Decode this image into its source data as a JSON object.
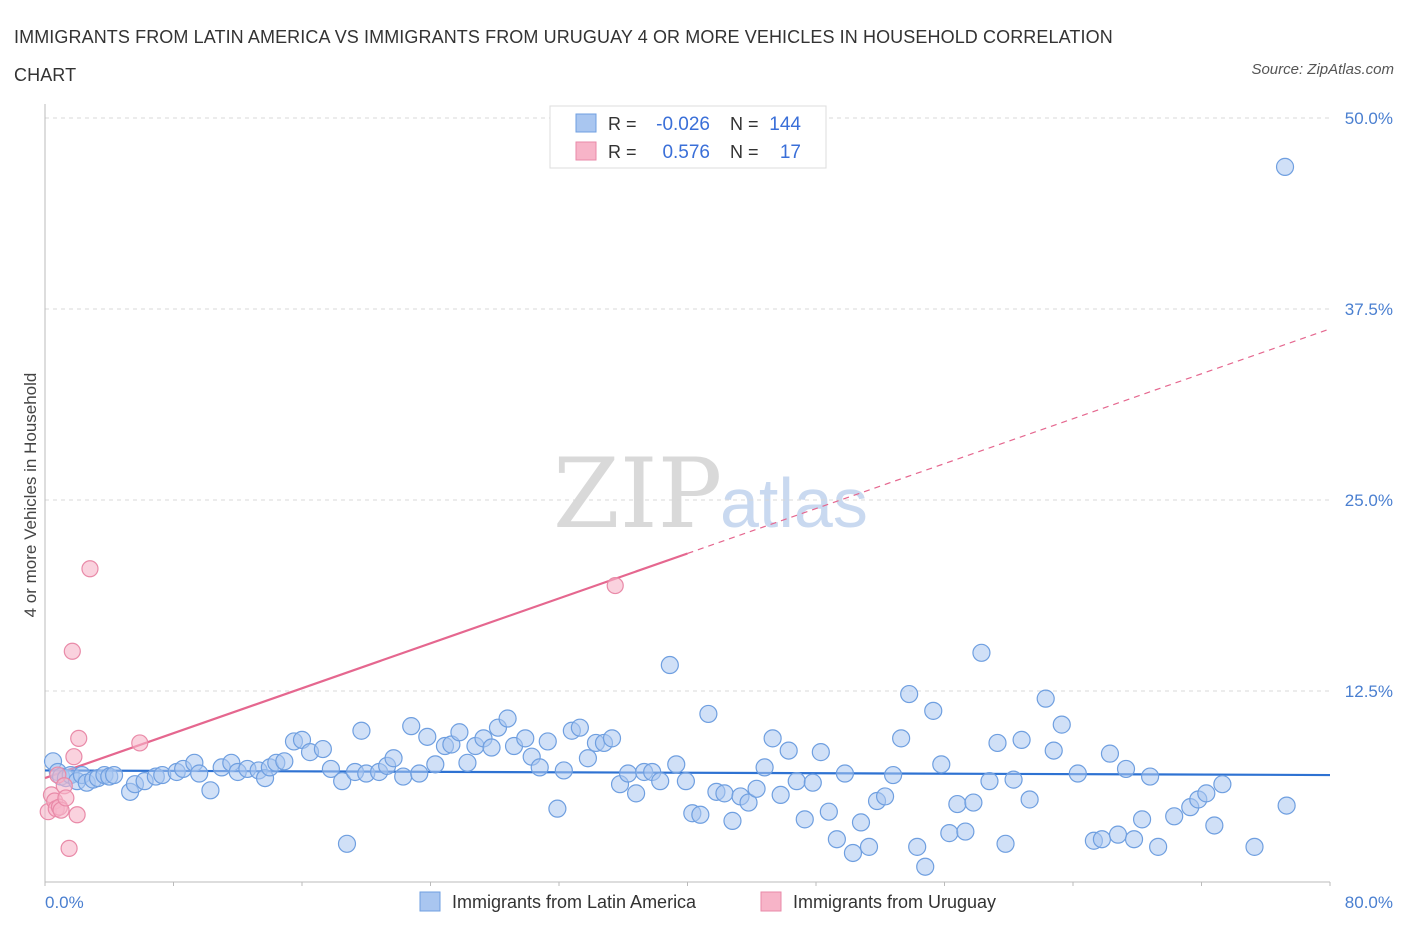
{
  "title": "IMMIGRANTS FROM LATIN AMERICA VS IMMIGRANTS FROM URUGUAY 4 OR MORE VEHICLES IN HOUSEHOLD CORRELATION CHART",
  "source": "Source: ZipAtlas.com",
  "watermark": {
    "zip": "ZIP",
    "atlas": "atlas"
  },
  "colors": {
    "blue_fill": "#a9c6f0",
    "blue_stroke": "#6f9fe0",
    "blue_line": "#2e72d2",
    "pink_fill": "#f7b4c8",
    "pink_stroke": "#e98aa8",
    "pink_line": "#e5678f",
    "grid": "#d8d8d8",
    "axis_label": "#4a7fd0"
  },
  "legend": {
    "rows": [
      {
        "r_label": "R =",
        "r_value": "-0.026",
        "n_label": "N =",
        "n_value": "144"
      },
      {
        "r_label": "R =",
        "r_value": "0.576",
        "n_label": "N =",
        "n_value": "17"
      }
    ]
  },
  "chart_data": {
    "type": "scatter",
    "title": "IMMIGRANTS FROM LATIN AMERICA VS IMMIGRANTS FROM URUGUAY 4 OR MORE VEHICLES IN HOUSEHOLD CORRELATION CHART",
    "xlabel": "",
    "ylabel": "4 or more Vehicles in Household",
    "xlim": [
      0,
      80
    ],
    "ylim": [
      0,
      50
    ],
    "x_tick_labels": [
      "0.0%",
      "80.0%"
    ],
    "y_ticks": [
      12.5,
      25.0,
      37.5,
      50.0
    ],
    "y_tick_labels": [
      "12.5%",
      "25.0%",
      "37.5%",
      "50.0%"
    ],
    "grid": true,
    "legend_placement": "top-center",
    "series": [
      {
        "name": "Immigrants from Latin America",
        "R": -0.026,
        "N": 144,
        "trend": {
          "x": [
            0,
            80
          ],
          "y": [
            7.3,
            7.0
          ],
          "dashed_from": null
        },
        "points": [
          [
            0.5,
            7.9
          ],
          [
            0.8,
            7.2
          ],
          [
            1.0,
            6.9
          ],
          [
            1.3,
            6.8
          ],
          [
            1.6,
            7.0
          ],
          [
            2.0,
            6.6
          ],
          [
            2.3,
            7.0
          ],
          [
            2.6,
            6.5
          ],
          [
            3.0,
            6.7
          ],
          [
            3.3,
            6.8
          ],
          [
            3.7,
            7.0
          ],
          [
            4.0,
            6.9
          ],
          [
            4.3,
            7.0
          ],
          [
            5.3,
            5.9
          ],
          [
            5.6,
            6.4
          ],
          [
            6.2,
            6.6
          ],
          [
            6.9,
            6.9
          ],
          [
            7.3,
            7.0
          ],
          [
            8.2,
            7.2
          ],
          [
            8.6,
            7.4
          ],
          [
            9.3,
            7.8
          ],
          [
            9.6,
            7.1
          ],
          [
            10.3,
            6.0
          ],
          [
            11.0,
            7.5
          ],
          [
            11.6,
            7.8
          ],
          [
            12.0,
            7.2
          ],
          [
            12.6,
            7.4
          ],
          [
            13.3,
            7.3
          ],
          [
            13.7,
            6.8
          ],
          [
            14.0,
            7.5
          ],
          [
            14.4,
            7.8
          ],
          [
            14.9,
            7.9
          ],
          [
            15.5,
            9.2
          ],
          [
            16.0,
            9.3
          ],
          [
            16.5,
            8.5
          ],
          [
            17.3,
            8.7
          ],
          [
            17.8,
            7.4
          ],
          [
            18.5,
            6.6
          ],
          [
            18.8,
            2.5
          ],
          [
            19.3,
            7.2
          ],
          [
            19.7,
            9.9
          ],
          [
            20.0,
            7.1
          ],
          [
            20.8,
            7.2
          ],
          [
            21.3,
            7.6
          ],
          [
            21.7,
            8.1
          ],
          [
            22.3,
            6.9
          ],
          [
            22.8,
            10.2
          ],
          [
            23.3,
            7.1
          ],
          [
            23.8,
            9.5
          ],
          [
            24.3,
            7.7
          ],
          [
            24.9,
            8.9
          ],
          [
            25.3,
            9.0
          ],
          [
            25.8,
            9.8
          ],
          [
            26.3,
            7.8
          ],
          [
            26.8,
            8.9
          ],
          [
            27.3,
            9.4
          ],
          [
            27.8,
            8.8
          ],
          [
            28.2,
            10.1
          ],
          [
            28.8,
            10.7
          ],
          [
            29.2,
            8.9
          ],
          [
            29.9,
            9.4
          ],
          [
            30.3,
            8.2
          ],
          [
            30.8,
            7.5
          ],
          [
            31.3,
            9.2
          ],
          [
            31.9,
            4.8
          ],
          [
            32.3,
            7.3
          ],
          [
            32.8,
            9.9
          ],
          [
            33.3,
            10.1
          ],
          [
            33.8,
            8.1
          ],
          [
            34.3,
            9.1
          ],
          [
            34.8,
            9.1
          ],
          [
            35.3,
            9.4
          ],
          [
            35.8,
            6.4
          ],
          [
            36.3,
            7.1
          ],
          [
            36.8,
            5.8
          ],
          [
            37.3,
            7.2
          ],
          [
            37.8,
            7.2
          ],
          [
            38.3,
            6.6
          ],
          [
            38.9,
            14.2
          ],
          [
            39.3,
            7.7
          ],
          [
            39.9,
            6.6
          ],
          [
            40.3,
            4.5
          ],
          [
            40.8,
            4.4
          ],
          [
            41.3,
            11.0
          ],
          [
            41.8,
            5.9
          ],
          [
            42.3,
            5.8
          ],
          [
            42.8,
            4.0
          ],
          [
            43.3,
            5.6
          ],
          [
            43.8,
            5.2
          ],
          [
            44.3,
            6.1
          ],
          [
            44.8,
            7.5
          ],
          [
            45.3,
            9.4
          ],
          [
            45.8,
            5.7
          ],
          [
            46.3,
            8.6
          ],
          [
            46.8,
            6.6
          ],
          [
            47.3,
            4.1
          ],
          [
            47.8,
            6.5
          ],
          [
            48.3,
            8.5
          ],
          [
            48.8,
            4.6
          ],
          [
            49.3,
            2.8
          ],
          [
            49.8,
            7.1
          ],
          [
            50.3,
            1.9
          ],
          [
            50.8,
            3.9
          ],
          [
            51.3,
            2.3
          ],
          [
            51.8,
            5.3
          ],
          [
            52.3,
            5.6
          ],
          [
            52.8,
            7.0
          ],
          [
            53.3,
            9.4
          ],
          [
            53.8,
            12.3
          ],
          [
            54.3,
            2.3
          ],
          [
            54.8,
            1.0
          ],
          [
            55.3,
            11.2
          ],
          [
            55.8,
            7.7
          ],
          [
            56.3,
            3.2
          ],
          [
            56.8,
            5.1
          ],
          [
            57.3,
            3.3
          ],
          [
            57.8,
            5.2
          ],
          [
            58.3,
            15.0
          ],
          [
            58.8,
            6.6
          ],
          [
            59.3,
            9.1
          ],
          [
            59.8,
            2.5
          ],
          [
            60.3,
            6.7
          ],
          [
            60.8,
            9.3
          ],
          [
            61.3,
            5.4
          ],
          [
            62.3,
            12.0
          ],
          [
            62.8,
            8.6
          ],
          [
            63.3,
            10.3
          ],
          [
            64.3,
            7.1
          ],
          [
            65.3,
            2.7
          ],
          [
            65.8,
            2.8
          ],
          [
            66.3,
            8.4
          ],
          [
            66.8,
            3.1
          ],
          [
            67.3,
            7.4
          ],
          [
            67.8,
            2.8
          ],
          [
            68.3,
            4.1
          ],
          [
            68.8,
            6.9
          ],
          [
            69.3,
            2.3
          ],
          [
            70.3,
            4.3
          ],
          [
            71.3,
            4.9
          ],
          [
            71.8,
            5.4
          ],
          [
            72.3,
            5.8
          ],
          [
            72.8,
            3.7
          ],
          [
            73.3,
            6.4
          ],
          [
            75.3,
            2.3
          ],
          [
            77.3,
            5.0
          ],
          [
            77.2,
            46.8
          ]
        ]
      },
      {
        "name": "Immigrants from Uruguay",
        "R": 0.576,
        "N": 17,
        "trend": {
          "x": [
            0,
            80
          ],
          "y": [
            6.8,
            36.2
          ],
          "dashed_from": 40
        },
        "points": [
          [
            0.2,
            4.6
          ],
          [
            0.4,
            5.7
          ],
          [
            0.6,
            5.3
          ],
          [
            0.7,
            4.8
          ],
          [
            0.8,
            7.0
          ],
          [
            0.9,
            4.9
          ],
          [
            1.0,
            4.7
          ],
          [
            1.2,
            6.3
          ],
          [
            1.3,
            5.5
          ],
          [
            1.5,
            2.2
          ],
          [
            1.7,
            15.1
          ],
          [
            1.8,
            8.2
          ],
          [
            2.0,
            4.4
          ],
          [
            2.1,
            9.4
          ],
          [
            2.8,
            20.5
          ],
          [
            5.9,
            9.1
          ],
          [
            35.5,
            19.4
          ]
        ]
      }
    ]
  },
  "bottom_legend": {
    "items": [
      {
        "label": "Immigrants from Latin America"
      },
      {
        "label": "Immigrants from Uruguay"
      }
    ]
  }
}
